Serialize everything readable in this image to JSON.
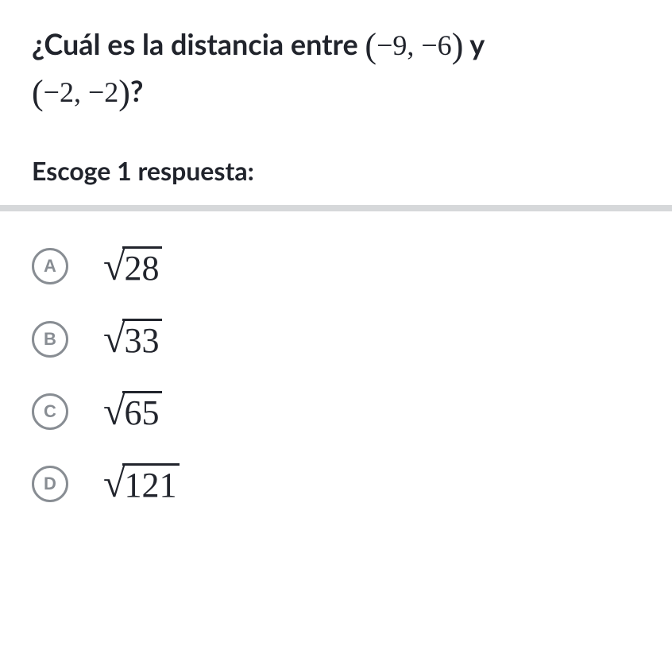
{
  "question": {
    "prefix": "¿Cuál es la distancia entre ",
    "point1": "(−9, −6)",
    "mid": " y ",
    "point2": "(−2, −2)",
    "suffix": "?"
  },
  "instruction": "Escoge 1 respuesta:",
  "divider_color": "#d6d8da",
  "circle_color": "#888d93",
  "text_color": "#21242c",
  "options": [
    {
      "letter": "A",
      "radicand": "28"
    },
    {
      "letter": "B",
      "radicand": "33"
    },
    {
      "letter": "C",
      "radicand": "65"
    },
    {
      "letter": "D",
      "radicand": "121"
    }
  ]
}
